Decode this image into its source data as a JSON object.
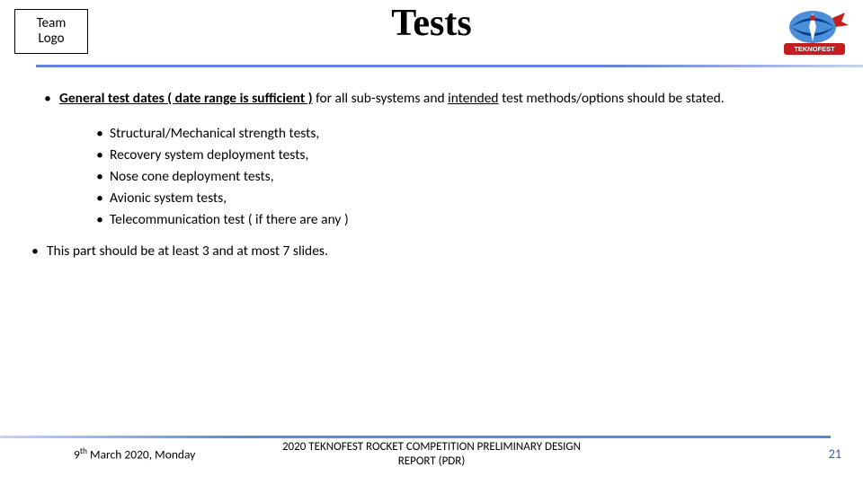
{
  "header": {
    "team_logo_line1": "Team",
    "team_logo_line2": "Logo",
    "title": "Tests",
    "logo_colors": {
      "red": "#c22020",
      "blue": "#003a8c",
      "sky": "#4a8fd8",
      "white": "#ffffff"
    }
  },
  "content": {
    "main_bullet_prefix": " ",
    "main_bullet_seg1": "General test dates ( date range is sufficient )",
    "main_bullet_seg2": " for all sub-systems and ",
    "main_bullet_seg3": "intended",
    "main_bullet_seg4": " test methods/options should be stated.",
    "sub_items": [
      "Structural/Mechanical strength tests,",
      "Recovery system deployment tests,",
      "Nose cone deployment tests,",
      "Avionic system tests,",
      "Telecommunication test ( if there are any )"
    ],
    "final_note": "This part should be at least 3 and at most 7 slides."
  },
  "footer": {
    "date_pre": "9",
    "date_sup": "th",
    "date_post": " March 2020, Monday",
    "center_line1": "2020 TEKNOFEST ROCKET COMPETITION PRELIMINARY DESIGN",
    "center_line2": "REPORT (PDR)",
    "page": "21"
  },
  "style": {
    "rule_color_main": "#5f84d9",
    "rule_color_fade": "#c7d4ef",
    "page_num_color": "#2e5fb5"
  }
}
